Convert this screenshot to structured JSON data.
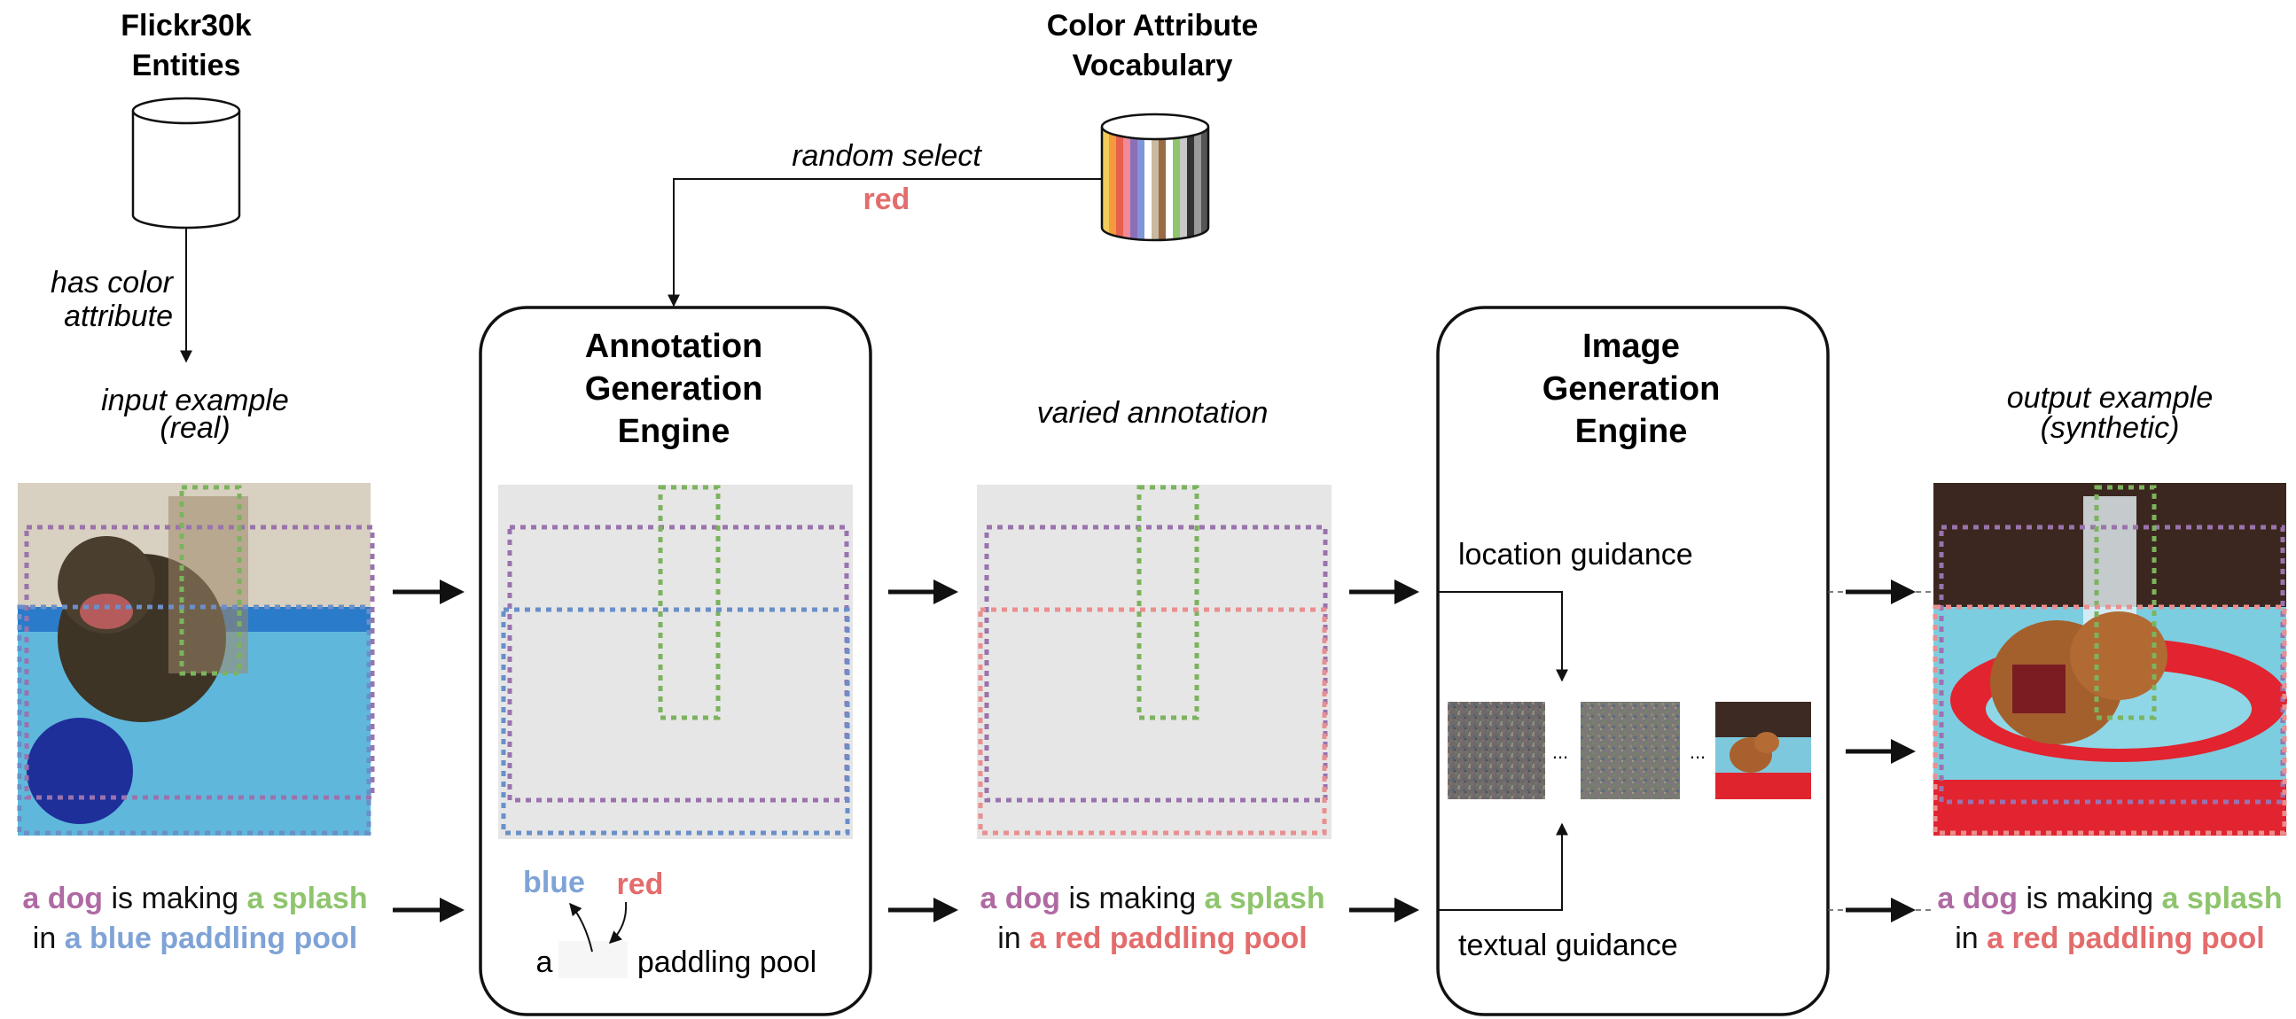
{
  "source": {
    "title_line1": "Flickr30k",
    "title_line2": "Entities"
  },
  "vocab": {
    "title_line1": "Color Attribute",
    "title_line2": "Vocabulary"
  },
  "edge_labels": {
    "has_color_line1": "has color",
    "has_color_line2": "attribute",
    "random_select": "random select",
    "selected_color": "red"
  },
  "annotation_engine": {
    "title_line1": "Annotation",
    "title_line2": "Generation",
    "title_line3": "Engine"
  },
  "image_engine": {
    "title_line1": "Image",
    "title_line2": "Generation",
    "title_line3": "Engine"
  },
  "input_example": {
    "label_line1": "input example",
    "label_line2": "(real)",
    "caption": [
      [
        {
          "text": "a dog",
          "color": "#b06aa3",
          "bold": true
        },
        {
          "text": " is making ",
          "color": "#111111",
          "bold": false
        },
        {
          "text": "a splash",
          "color": "#8ec56d",
          "bold": true
        }
      ],
      [
        {
          "text": "in ",
          "color": "#111111",
          "bold": false
        },
        {
          "text": "a blue paddling pool",
          "color": "#7fa3d6",
          "bold": true
        }
      ]
    ]
  },
  "swap": {
    "old_word": "blue",
    "new_word": "red",
    "template_prefix": "a",
    "template_suffix": "paddling pool"
  },
  "varied": {
    "label": "varied annotation",
    "caption": [
      [
        {
          "text": "a dog",
          "color": "#b06aa3",
          "bold": true
        },
        {
          "text": " is making ",
          "color": "#111111",
          "bold": false
        },
        {
          "text": "a splash",
          "color": "#8ec56d",
          "bold": true
        }
      ],
      [
        {
          "text": "in ",
          "color": "#111111",
          "bold": false
        },
        {
          "text": "a red paddling pool",
          "color": "#e46c6c",
          "bold": true
        }
      ]
    ]
  },
  "guidance": {
    "location": "location guidance",
    "textual": "textual guidance",
    "ellipsis": "..."
  },
  "output_example": {
    "label_line1": "output example",
    "label_line2": "(synthetic)",
    "caption": [
      [
        {
          "text": "a dog",
          "color": "#b06aa3",
          "bold": true
        },
        {
          "text": " is making ",
          "color": "#111111",
          "bold": false
        },
        {
          "text": "a splash",
          "color": "#8ec56d",
          "bold": true
        }
      ],
      [
        {
          "text": "in ",
          "color": "#111111",
          "bold": false
        },
        {
          "text": "a red paddling pool",
          "color": "#e46c6c",
          "bold": true
        }
      ]
    ]
  },
  "colors": {
    "purple": "#9a73ad",
    "green": "#7cb35e",
    "blue": "#6a8fc9",
    "red": "#ea8f8f",
    "panel_gray": "#e6e6e6",
    "vocab_stripes": [
      "#f2cd5a",
      "#f39a3c",
      "#e8604d",
      "#f08a9a",
      "#8b6fb8",
      "#7f96d8",
      "#ffffff",
      "#c9b9a0",
      "#9b6b43",
      "#ffffff",
      "#8ec56d",
      "#c9c9c9",
      "#333333",
      "#9a9a9a",
      "#555555"
    ]
  },
  "icons": [
    "cylinder-icon",
    "color-vocabulary-cylinder-icon",
    "arrow-right-icon",
    "curved-arrow-icon"
  ]
}
